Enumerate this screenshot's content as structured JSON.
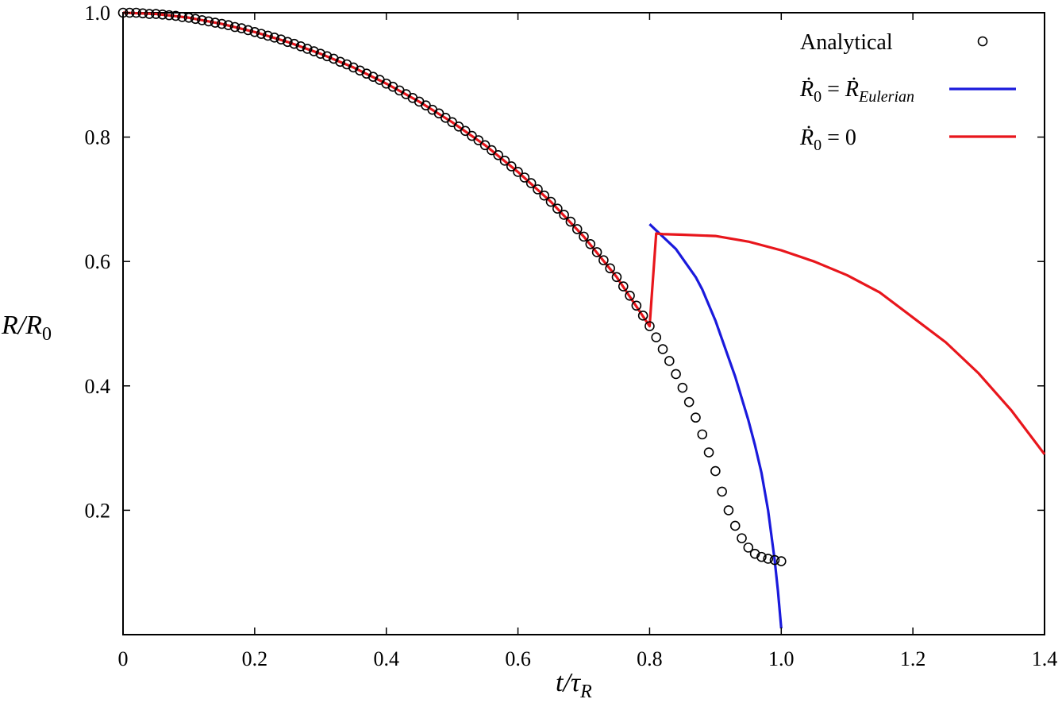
{
  "chart_data": {
    "type": "line",
    "xlabel": {
      "base": "t/τ",
      "sub": "R"
    },
    "ylabel": {
      "base": "R/R",
      "sub": "0"
    },
    "xlim": [
      0,
      1.4
    ],
    "ylim": [
      0,
      1.0
    ],
    "x_ticks": [
      {
        "value": 0,
        "label": "0"
      },
      {
        "value": 0.2,
        "label": "0.2"
      },
      {
        "value": 0.4,
        "label": "0.4"
      },
      {
        "value": 0.6,
        "label": "0.6"
      },
      {
        "value": 0.8,
        "label": "0.8"
      },
      {
        "value": 1.0,
        "label": "1.0"
      },
      {
        "value": 1.2,
        "label": "1.2"
      },
      {
        "value": 1.4,
        "label": "1.4"
      }
    ],
    "y_ticks": [
      {
        "value": 0.2,
        "label": "0.2"
      },
      {
        "value": 0.4,
        "label": "0.4"
      },
      {
        "value": 0.6,
        "label": "0.6"
      },
      {
        "value": 0.8,
        "label": "0.8"
      },
      {
        "value": 1.0,
        "label": "1.0"
      }
    ],
    "grid": false,
    "legend_position": "top-right",
    "series": [
      {
        "name": "Analytical",
        "style": "markers",
        "color": "#000000",
        "marker": "open-circle",
        "x": [
          0,
          0.01,
          0.02,
          0.03,
          0.04,
          0.05,
          0.06,
          0.07,
          0.08,
          0.09,
          0.1,
          0.11,
          0.12,
          0.13,
          0.14,
          0.15,
          0.16,
          0.17,
          0.18,
          0.19,
          0.2,
          0.21,
          0.22,
          0.23,
          0.24,
          0.25,
          0.26,
          0.27,
          0.28,
          0.29,
          0.3,
          0.31,
          0.32,
          0.33,
          0.34,
          0.35,
          0.36,
          0.37,
          0.38,
          0.39,
          0.4,
          0.41,
          0.42,
          0.43,
          0.44,
          0.45,
          0.46,
          0.47,
          0.48,
          0.49,
          0.5,
          0.51,
          0.52,
          0.53,
          0.54,
          0.55,
          0.56,
          0.57,
          0.58,
          0.59,
          0.6,
          0.61,
          0.62,
          0.63,
          0.64,
          0.65,
          0.66,
          0.67,
          0.68,
          0.69,
          0.7,
          0.71,
          0.72,
          0.73,
          0.74,
          0.75,
          0.76,
          0.77,
          0.78,
          0.79,
          0.8,
          0.81,
          0.82,
          0.83,
          0.84,
          0.85,
          0.86,
          0.87,
          0.88,
          0.89,
          0.9,
          0.91,
          0.92,
          0.93,
          0.94,
          0.95,
          0.96,
          0.97,
          0.98,
          0.99,
          1.0
        ],
        "y": [
          1.0,
          1.0,
          1.0,
          0.999,
          0.998,
          0.998,
          0.997,
          0.996,
          0.995,
          0.993,
          0.992,
          0.99,
          0.988,
          0.986,
          0.984,
          0.982,
          0.98,
          0.977,
          0.975,
          0.972,
          0.969,
          0.966,
          0.963,
          0.96,
          0.957,
          0.953,
          0.95,
          0.946,
          0.942,
          0.938,
          0.934,
          0.93,
          0.926,
          0.921,
          0.917,
          0.912,
          0.907,
          0.902,
          0.897,
          0.892,
          0.886,
          0.881,
          0.875,
          0.869,
          0.863,
          0.857,
          0.851,
          0.844,
          0.838,
          0.831,
          0.824,
          0.817,
          0.81,
          0.802,
          0.795,
          0.787,
          0.779,
          0.771,
          0.762,
          0.753,
          0.744,
          0.735,
          0.726,
          0.716,
          0.706,
          0.696,
          0.685,
          0.675,
          0.664,
          0.652,
          0.64,
          0.628,
          0.615,
          0.602,
          0.589,
          0.575,
          0.56,
          0.545,
          0.529,
          0.513,
          0.496,
          0.478,
          0.459,
          0.44,
          0.419,
          0.397,
          0.374,
          0.349,
          0.322,
          0.293,
          0.263,
          0.23,
          0.2,
          0.175,
          0.155,
          0.14,
          0.13,
          0.125,
          0.122,
          0.12,
          0.118
        ]
      },
      {
        "name": "Ṙ0 = ṘEulerian",
        "style": "line",
        "color": "#1a1adc",
        "x": [
          0.8,
          0.81,
          0.82,
          0.83,
          0.84,
          0.85,
          0.86,
          0.87,
          0.88,
          0.89,
          0.9,
          0.91,
          0.92,
          0.93,
          0.94,
          0.95,
          0.96,
          0.97,
          0.98,
          0.99,
          0.995,
          1.0
        ],
        "y": [
          0.66,
          0.65,
          0.64,
          0.63,
          0.62,
          0.605,
          0.59,
          0.575,
          0.555,
          0.53,
          0.505,
          0.475,
          0.445,
          0.415,
          0.38,
          0.345,
          0.305,
          0.26,
          0.2,
          0.12,
          0.07,
          0.01
        ]
      },
      {
        "name": "Ṙ0 = 0",
        "style": "line",
        "color": "#e8161c",
        "x": [
          0,
          0.05,
          0.1,
          0.15,
          0.2,
          0.25,
          0.3,
          0.35,
          0.4,
          0.45,
          0.5,
          0.55,
          0.6,
          0.65,
          0.7,
          0.75,
          0.8,
          0.81,
          0.82,
          0.85,
          0.9,
          0.95,
          1.0,
          1.05,
          1.1,
          1.15,
          1.2,
          1.25,
          1.3,
          1.35,
          1.4
        ],
        "y": [
          1.0,
          0.998,
          0.992,
          0.982,
          0.969,
          0.953,
          0.934,
          0.912,
          0.886,
          0.857,
          0.824,
          0.787,
          0.744,
          0.696,
          0.64,
          0.575,
          0.496,
          0.645,
          0.644,
          0.643,
          0.641,
          0.632,
          0.618,
          0.6,
          0.578,
          0.55,
          0.51,
          0.47,
          0.42,
          0.36,
          0.29
        ]
      }
    ],
    "legend": [
      {
        "label": "Analytical",
        "series_index": 0
      },
      {
        "label_parts": {
          "a": "Ṙ",
          "a_sub": "0",
          "eq": " = ",
          "b": "Ṙ",
          "b_sub": "Eulerian"
        },
        "series_index": 1
      },
      {
        "label_parts": {
          "a": "Ṙ",
          "a_sub": "0",
          "eq": " = 0"
        },
        "series_index": 2
      }
    ]
  }
}
